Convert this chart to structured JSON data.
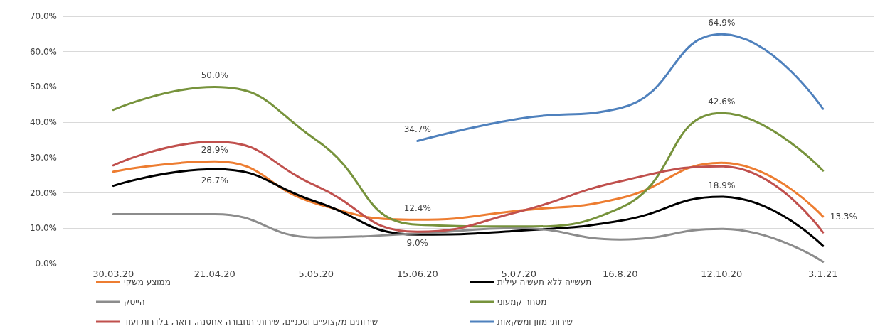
{
  "chart_data": {
    "type": "line",
    "categories": [
      "30.03.20",
      "21.04.20",
      "5.05.20",
      "15.06.20",
      "5.07.20",
      "16.8.20",
      "12.10.20",
      "3.1.21"
    ],
    "series": [
      {
        "name": "ממוצע משקי",
        "color": "#ed7d31",
        "values": [
          26.0,
          28.9,
          17.0,
          12.4,
          15.0,
          18.5,
          28.5,
          13.3
        ],
        "value_labels": [
          null,
          "28.9%",
          null,
          "12.4%",
          null,
          null,
          null,
          "13.3%"
        ]
      },
      {
        "name": "תעשייה ללא תעשיה עילית",
        "color": "#000000",
        "values": [
          22.0,
          26.7,
          17.5,
          8.2,
          9.3,
          12.1,
          18.9,
          5.0
        ],
        "value_labels": [
          null,
          "26.7%",
          null,
          null,
          null,
          null,
          "18.9%",
          null
        ]
      },
      {
        "name": "הייטק",
        "color": "#8c8c8c",
        "values": [
          14.0,
          14.0,
          7.4,
          8.5,
          10.0,
          6.8,
          9.8,
          0.5
        ]
      },
      {
        "name": "מסחר קמעוני",
        "color": "#77933c",
        "values": [
          43.5,
          50.0,
          35.0,
          11.0,
          10.5,
          15.7,
          42.6,
          26.3
        ],
        "value_labels": [
          null,
          "50.0%",
          null,
          null,
          null,
          null,
          "42.6%",
          null
        ]
      },
      {
        "name": "שירותים מקצועיים וטכניים, שירותי תחבורה אחסנה, דואר, בלדרות ועוד",
        "color": "#c0504d",
        "values": [
          27.8,
          34.5,
          22.0,
          9.0,
          14.7,
          23.3,
          27.5,
          8.8
        ],
        "value_labels": [
          null,
          null,
          null,
          "9.0%",
          null,
          null,
          null,
          null
        ]
      },
      {
        "name": "שירותי מזון ומשקאות",
        "color": "#4f81bd",
        "values": [
          null,
          null,
          null,
          34.7,
          41.0,
          44.0,
          64.9,
          43.8
        ],
        "value_labels": [
          null,
          null,
          null,
          "34.7%",
          null,
          null,
          "64.9%",
          null
        ]
      }
    ],
    "ylim": [
      0,
      70
    ],
    "yticks": [
      {
        "value": 0,
        "label": "0.0%"
      },
      {
        "value": 10,
        "label": "10.0%"
      },
      {
        "value": 20,
        "label": "20.0%"
      },
      {
        "value": 30,
        "label": "30.0%"
      },
      {
        "value": 40,
        "label": "40.0%"
      },
      {
        "value": 50,
        "label": "50.0%"
      },
      {
        "value": 60,
        "label": "60.0%"
      },
      {
        "value": 70,
        "label": "70.0%"
      }
    ],
    "grid": "y",
    "legend": "bottom",
    "marker": "none",
    "line_style": "solid"
  }
}
